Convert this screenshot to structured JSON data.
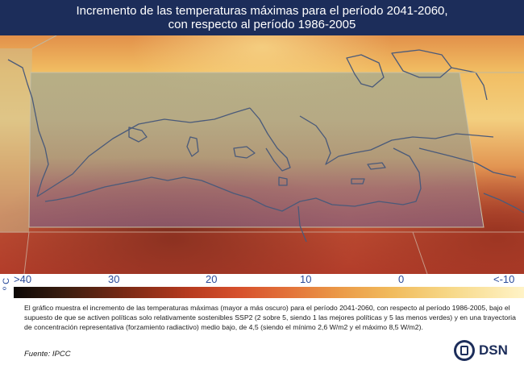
{
  "title": {
    "line1": "Incremento de las temperaturas máximas para el período 2041-2060,",
    "line2": "con respecto al período 1986-2005"
  },
  "legend": {
    "unit": "º C",
    "ticks": [
      ">40",
      "30",
      "20",
      "10",
      "0",
      "<-10"
    ],
    "colors": [
      "#0c0806",
      "#7a2a15",
      "#d6502c",
      "#eb9a48",
      "#f7d98a",
      "#fff3c6"
    ]
  },
  "caption": "El gráfico muestra el incremento de las temperaturas máximas (mayor a más oscuro) para el período 2041-2060, con respecto al período 1986-2005, bajo el supuesto de que se activen políticas solo relativamente sostenibles SSP2 (2 sobre 5, siendo 1 las mejores políticas y 5 las menos verdes) y en una trayectoria de concentración representativa (forzamiento radiactivo) medio bajo, de 4,5 (siendo el mínimo 2,6 W/m2 y el máximo 8,5 W/m2).",
  "source": "Fuente: IPCC",
  "logo": {
    "text": "DSN",
    "icon": "spanish-coat-of-arms-seal"
  }
}
